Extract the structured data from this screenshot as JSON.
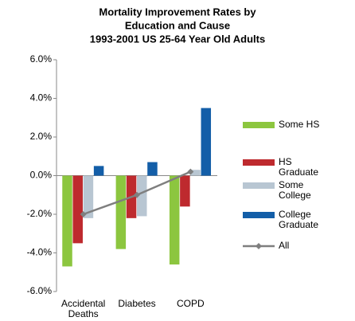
{
  "chart_data": {
    "type": "bar",
    "title": [
      "Mortality Improvement Rates by",
      "Education and Cause",
      "1993-2001 US 25-64 Year Old Adults"
    ],
    "categories": [
      "Accidental Deaths",
      "Diabetes",
      "COPD"
    ],
    "series": [
      {
        "name": "Some HS",
        "color": "#8cc63f",
        "values": [
          -4.7,
          -3.8,
          -4.6
        ]
      },
      {
        "name": "HS Graduate",
        "color": "#be2a2e",
        "values": [
          -3.5,
          -2.2,
          -1.6
        ]
      },
      {
        "name": "Some College",
        "color": "#b8c6d2",
        "values": [
          -2.2,
          -2.1,
          0.3
        ]
      },
      {
        "name": "College Graduate",
        "color": "#135ea8",
        "values": [
          0.5,
          0.7,
          3.5
        ]
      }
    ],
    "line_series": {
      "name": "All",
      "color": "#7f7f7f",
      "values": [
        -2.0,
        -1.0,
        0.2
      ]
    },
    "ylim": [
      -6,
      6
    ],
    "yticks": [
      {
        "value": -6,
        "label": "-6.0%"
      },
      {
        "value": -4,
        "label": "-4.0%"
      },
      {
        "value": -2,
        "label": "-2.0%"
      },
      {
        "value": 0,
        "label": "0.0%"
      },
      {
        "value": 2,
        "label": "2.0%"
      },
      {
        "value": 4,
        "label": "4.0%"
      },
      {
        "value": 6,
        "label": "6.0%"
      }
    ]
  }
}
